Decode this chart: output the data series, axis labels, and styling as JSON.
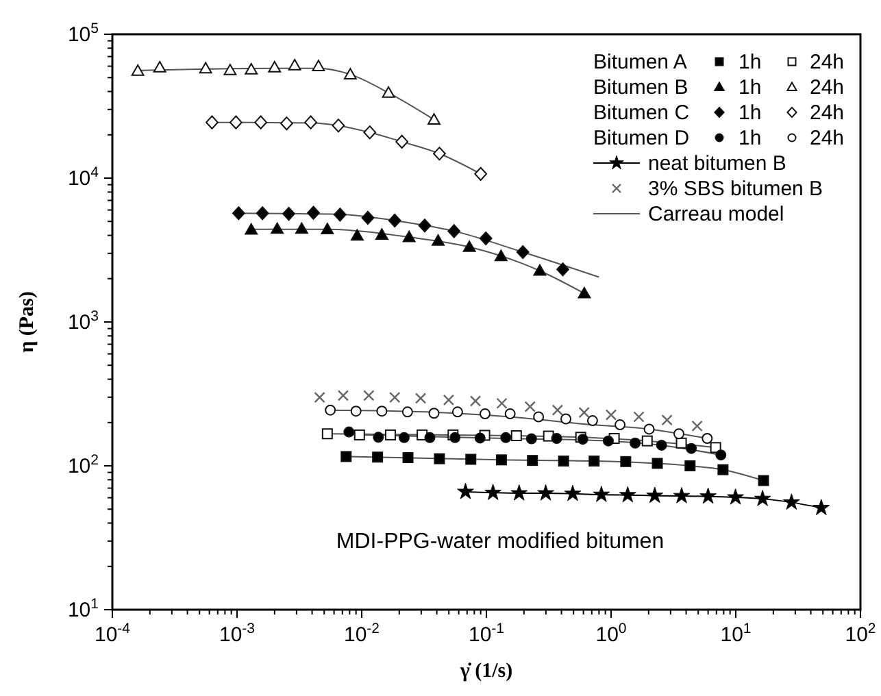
{
  "chart_data": {
    "type": "scatter",
    "xlabel": "γ̇ (1/s)",
    "ylabel": "η (Pas)",
    "log": "xy",
    "grid": false,
    "legend": "top right",
    "xlim": [
      0.0001,
      100
    ],
    "ylim": [
      10,
      100000
    ],
    "xticks": [
      {
        "value": 0.0001,
        "label": "10$^{-4}$"
      },
      {
        "value": 0.001,
        "label": "10$^{-3}$"
      },
      {
        "value": 0.01,
        "label": "10$^{-2}$"
      },
      {
        "value": 0.1,
        "label": "10$^{-1}$"
      },
      {
        "value": 1,
        "label": "10$^{0}$"
      },
      {
        "value": 10,
        "label": "10$^{1}$"
      },
      {
        "value": 100,
        "label": "10$^{2}$"
      }
    ],
    "yticks": [
      {
        "value": 10,
        "label": "10$^{1}$"
      },
      {
        "value": 100,
        "label": "10$^{2}$"
      },
      {
        "value": 1000,
        "label": "10$^{3}$"
      },
      {
        "value": 10000,
        "label": "10$^{4}$"
      },
      {
        "value": 100000,
        "label": "10$^{5}$"
      }
    ],
    "annotations": [
      "MDI-PPG-water modified bitumen",
      "Bitumen A",
      "Bitumen B",
      "Bitumen C",
      "Bitumen D"
    ],
    "series": [
      {
        "name": "1h",
        "marker": "square",
        "color": "#000000",
        "x": [
          0.0075,
          0.0134,
          0.0235,
          0.042,
          0.075,
          0.132,
          0.234,
          0.416,
          0.731,
          1.31,
          2.35,
          4.3,
          7.9,
          16.7
        ],
        "values": [
          116,
          115,
          114,
          112,
          111,
          110,
          109,
          108,
          108,
          107,
          104,
          100,
          94,
          79
        ]
      },
      {
        "name": "24h",
        "marker": "square",
        "color": "#ffffff",
        "x": [
          0.0053,
          0.0096,
          0.017,
          0.0305,
          0.054,
          0.097,
          0.174,
          0.315,
          0.571,
          1.06,
          1.95,
          3.66,
          6.9
        ],
        "values": [
          167,
          164,
          164,
          164,
          164,
          163,
          162,
          161,
          158,
          155,
          149,
          144,
          134
        ]
      },
      {
        "name": "1h",
        "marker": "triangle",
        "color": "#000000",
        "x": [
          0.0013,
          0.0021,
          0.0033,
          0.0053,
          0.0092,
          0.0145,
          0.024,
          0.041,
          0.073,
          0.131,
          0.268,
          0.61
        ],
        "values": [
          4380,
          4440,
          4440,
          4410,
          3980,
          4040,
          3890,
          3670,
          3320,
          2870,
          2270,
          1580
        ]
      },
      {
        "name": "24h",
        "marker": "triangle",
        "color": "#ffffff",
        "x": [
          0.00016,
          0.00024,
          0.00056,
          0.00088,
          0.0013,
          0.002,
          0.0029,
          0.0045,
          0.0081,
          0.0164,
          0.038
        ],
        "values": [
          55700,
          58800,
          57800,
          56200,
          56900,
          58800,
          60800,
          60000,
          52600,
          39200,
          25500
        ]
      },
      {
        "name": "1h",
        "marker": "diamond",
        "color": "#000000",
        "x": [
          0.00103,
          0.0016,
          0.0026,
          0.0041,
          0.0067,
          0.0112,
          0.0184,
          0.032,
          0.055,
          0.099,
          0.196,
          0.41
        ],
        "values": [
          5700,
          5700,
          5650,
          5740,
          5570,
          5300,
          5070,
          4680,
          4280,
          3810,
          3060,
          2320
        ]
      },
      {
        "name": "24h",
        "marker": "diamond",
        "color": "#ffffff",
        "x": [
          0.00063,
          0.00098,
          0.00155,
          0.0025,
          0.0039,
          0.0065,
          0.0116,
          0.021,
          0.042,
          0.09
        ],
        "values": [
          24400,
          24400,
          24400,
          24000,
          24400,
          23200,
          20800,
          17900,
          14800,
          10700
        ]
      },
      {
        "name": "1h",
        "marker": "circle",
        "color": "#000000",
        "x": [
          0.0079,
          0.0136,
          0.0219,
          0.0352,
          0.056,
          0.089,
          0.143,
          0.23,
          0.366,
          0.593,
          0.95,
          1.56,
          2.54,
          4.4,
          7.6
        ],
        "values": [
          172,
          158,
          157,
          157,
          157,
          156,
          157,
          154,
          155,
          153,
          149,
          144,
          139,
          132,
          119
        ]
      },
      {
        "name": "24h",
        "marker": "circle",
        "color": "#ffffff",
        "x": [
          0.0056,
          0.009,
          0.0145,
          0.0233,
          0.038,
          0.0587,
          0.0975,
          0.155,
          0.262,
          0.434,
          0.71,
          1.18,
          2.02,
          3.5,
          5.9
        ],
        "values": [
          244,
          240,
          240,
          237,
          232,
          237,
          230,
          230,
          219,
          212,
          206,
          193,
          180,
          167,
          155
        ]
      },
      {
        "name": "neat bitumen B",
        "type": "line",
        "marker": "star",
        "line_style": "solid",
        "color": "#000000",
        "x": [
          0.068,
          0.113,
          0.183,
          0.299,
          0.492,
          0.836,
          1.36,
          2.24,
          3.68,
          6.0,
          9.95,
          16.4,
          28,
          48.5
        ],
        "values": [
          66,
          65,
          64.5,
          64.5,
          64,
          63,
          62.6,
          62,
          61.7,
          61.3,
          60.4,
          59,
          55.7,
          51
        ]
      },
      {
        "name": "3% SBS bitumen B",
        "marker": "cross",
        "color": "#666666",
        "x": [
          0.0046,
          0.0071,
          0.0114,
          0.0184,
          0.0297,
          0.0498,
          0.0817,
          0.133,
          0.224,
          0.372,
          0.608,
          1.0,
          1.67,
          2.81,
          4.9
        ],
        "values": [
          299,
          308,
          308,
          299,
          295,
          287,
          282,
          272,
          258,
          244,
          235,
          226,
          219,
          208,
          189
        ]
      },
      {
        "name": "Carreau model",
        "type": "line",
        "marker": "none",
        "line_style": "solid",
        "color": "#555555",
        "x": [
          0.00016,
          0.002,
          0.0045,
          0.0081,
          0.0164,
          0.038,
          null,
          0.00063,
          0.0039,
          0.0116,
          0.021,
          0.042,
          0.09,
          null,
          0.00103,
          0.0067,
          0.0184,
          0.055,
          0.196,
          0.8,
          null,
          0.0013,
          0.0053,
          0.024,
          0.073,
          0.268,
          0.61,
          null,
          0.0056,
          0.038,
          0.155,
          0.71,
          2.02,
          5.9,
          null,
          0.0053,
          0.097,
          0.571,
          1.95,
          6.9,
          null,
          0.0079,
          0.143,
          0.95,
          2.54,
          7.6,
          null,
          0.0075,
          0.131,
          0.731,
          4.3,
          7.9,
          16.7
        ],
        "values": [
          56000,
          58000,
          58000,
          52600,
          39200,
          25500,
          null,
          24400,
          24200,
          20800,
          17900,
          14800,
          10700,
          null,
          5700,
          5600,
          5070,
          4280,
          3060,
          2050,
          null,
          4400,
          4400,
          3890,
          3320,
          2270,
          1580,
          null,
          244,
          236,
          219,
          193,
          180,
          155,
          null,
          167,
          163,
          158,
          149,
          134,
          null,
          165,
          155,
          149,
          139,
          119,
          null,
          116,
          110,
          108,
          100,
          94,
          79
        ]
      }
    ]
  }
}
